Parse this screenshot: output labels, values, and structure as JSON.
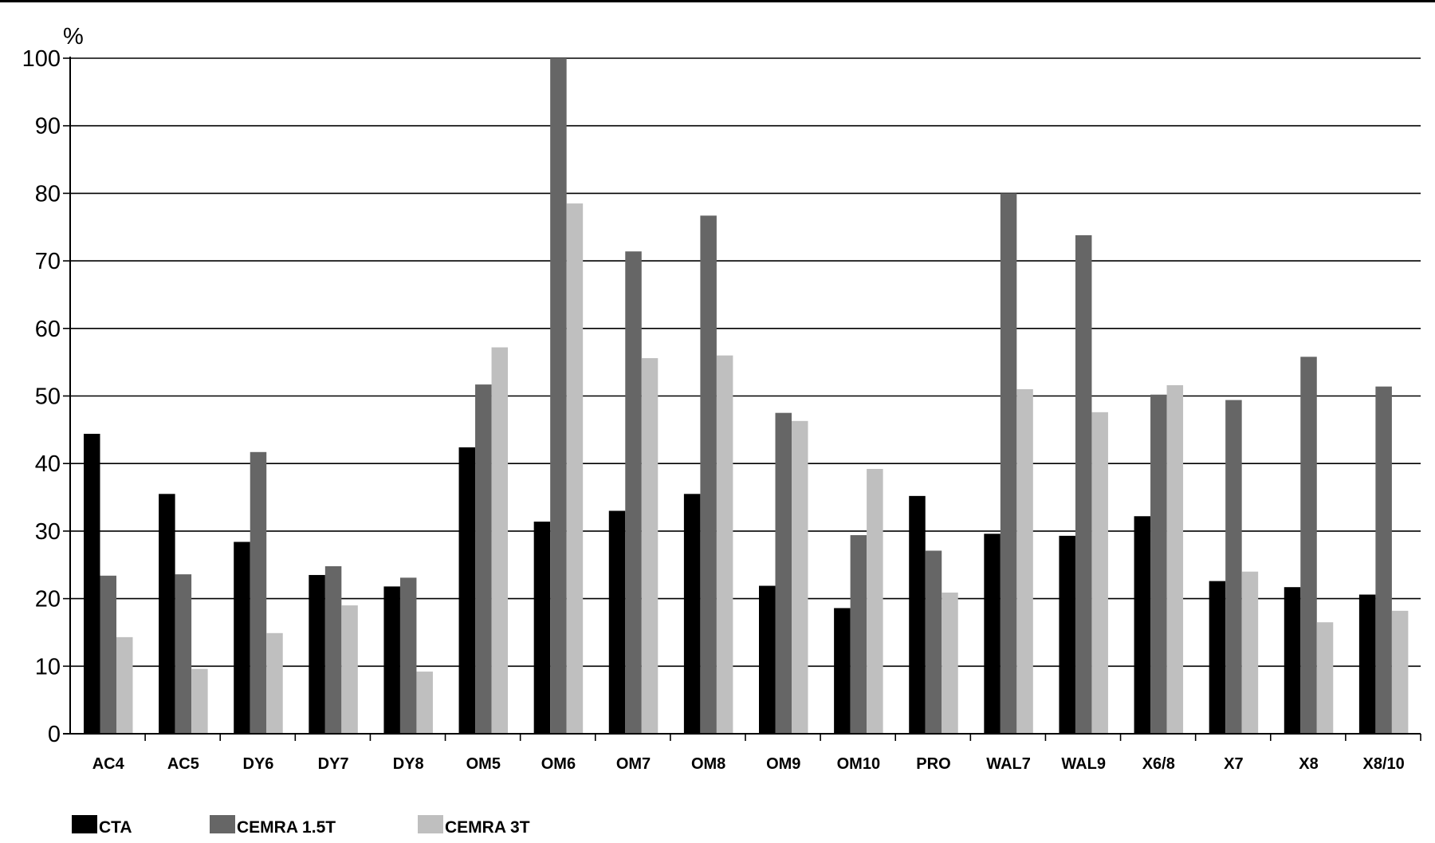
{
  "chart_data": {
    "type": "bar",
    "ylabel": "%",
    "ylim": [
      0,
      100
    ],
    "yticks": [
      0,
      10,
      20,
      30,
      40,
      50,
      60,
      70,
      80,
      90,
      100
    ],
    "grid": true,
    "legend_position": "bottom-left",
    "categories": [
      "AC4",
      "AC5",
      "DY6",
      "DY7",
      "DY8",
      "OM5",
      "OM6",
      "OM7",
      "OM8",
      "OM9",
      "OM10",
      "PRO",
      "WAL7",
      "WAL9",
      "X6/8",
      "X7",
      "X8",
      "X8/10"
    ],
    "series": [
      {
        "name": "CTA",
        "color": "#000000",
        "values": [
          44.4,
          35.5,
          28.4,
          23.5,
          21.8,
          42.4,
          31.4,
          33.0,
          35.5,
          21.9,
          18.6,
          35.2,
          29.6,
          29.3,
          32.2,
          22.6,
          21.7,
          20.6
        ]
      },
      {
        "name": "CEMRA 1.5T",
        "color": "#666666",
        "values": [
          23.4,
          23.6,
          41.7,
          24.8,
          23.1,
          51.7,
          100,
          71.4,
          76.7,
          47.5,
          29.4,
          27.1,
          80.0,
          73.8,
          50.2,
          49.4,
          55.8,
          51.4
        ]
      },
      {
        "name": "CEMRA 3T",
        "color": "#bfbfbf",
        "values": [
          14.3,
          9.6,
          14.9,
          19.0,
          9.2,
          57.2,
          78.5,
          55.6,
          56.0,
          46.3,
          39.2,
          20.9,
          51.0,
          47.6,
          51.6,
          24.0,
          16.5,
          18.2
        ]
      }
    ]
  }
}
